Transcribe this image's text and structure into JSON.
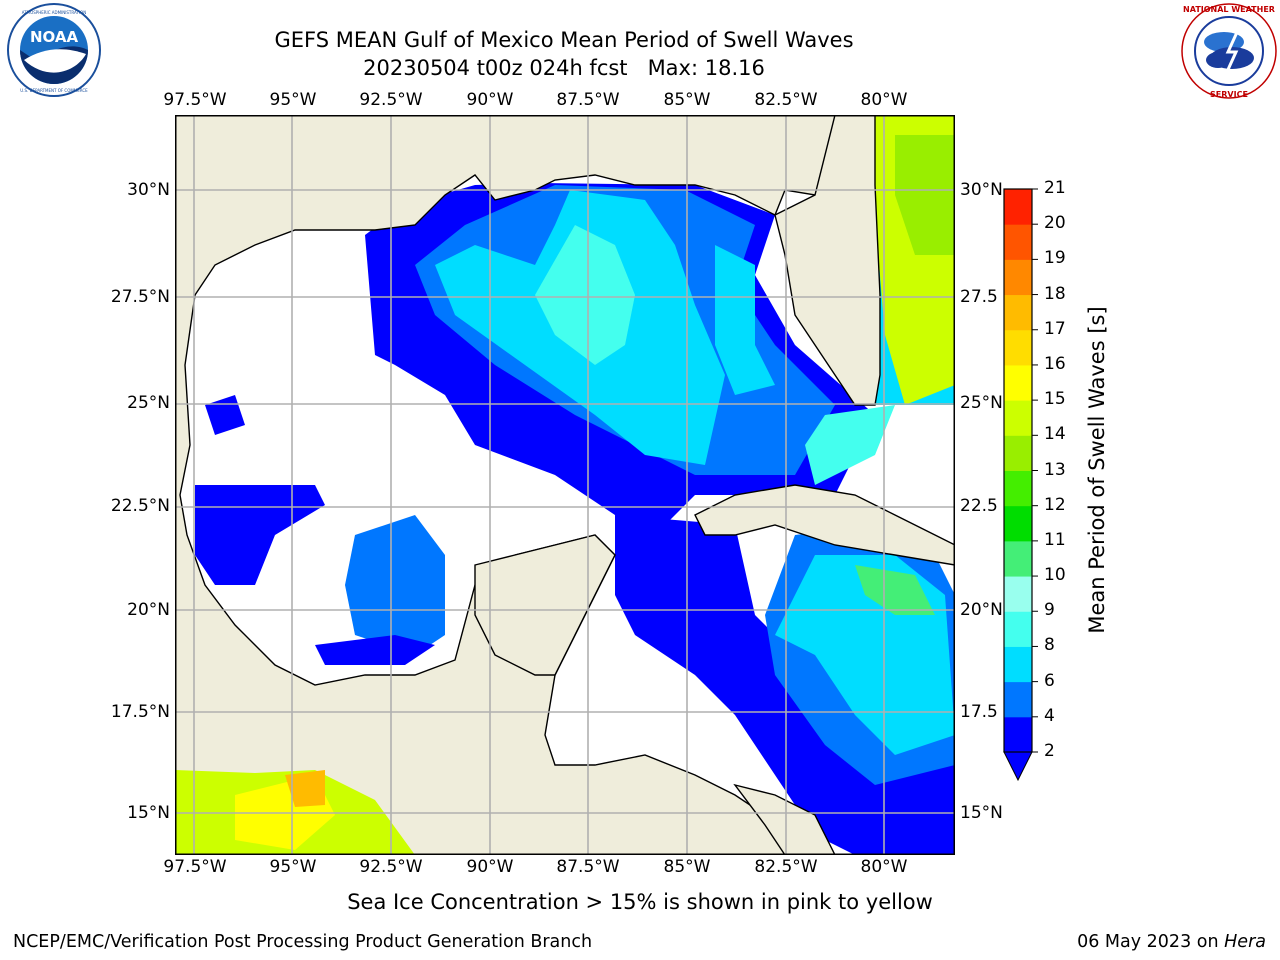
{
  "header": {
    "title_line1": "GEFS MEAN Gulf of Mexico Mean Period of Swell Waves",
    "title_line2": "20230504 t00z 024h fcst   Max: 18.16"
  },
  "logos": {
    "left": "NOAA",
    "left_ring_text": "NATIONAL OCEANIC AND ATMOSPHERIC ADMINISTRATION · U.S. DEPARTMENT OF COMMERCE",
    "right_ring_text": "NATIONAL WEATHER SERVICE"
  },
  "map": {
    "lon_labels": [
      "97.5°W",
      "95°W",
      "92.5°W",
      "90°W",
      "87.5°W",
      "85°W",
      "82.5°W",
      "80°W"
    ],
    "lat_labels_left": [
      "30°N",
      "27.5°N",
      "25°N",
      "22.5°N",
      "20°N",
      "17.5°N",
      "15°N"
    ],
    "lat_labels_right": [
      "30°N",
      "27.5",
      "25°N",
      "22.5",
      "20°N",
      "17.5",
      "15°N"
    ],
    "colors": {
      "land": "#efeddb",
      "grid": "#b0b0b0",
      "ocean_nodata": "#ffffff"
    }
  },
  "colorbar": {
    "label": "Mean Period of Swell Waves [s]",
    "ticks": [
      "2",
      "4",
      "6",
      "8",
      "9",
      "10",
      "11",
      "12",
      "13",
      "14",
      "15",
      "16",
      "17",
      "18",
      "19",
      "20",
      "21"
    ],
    "colors": [
      "#0000ff",
      "#0077ff",
      "#00ddff",
      "#44ffee",
      "#99ffee",
      "#44ee77",
      "#00dd00",
      "#44ee00",
      "#99ee00",
      "#ccff00",
      "#ffff00",
      "#ffdd00",
      "#ffbb00",
      "#ff8800",
      "#ff5500",
      "#ff2200"
    ],
    "under_color": "#0000ff"
  },
  "note": "Sea Ice Concentration > 15% is shown in pink to yellow",
  "footer": {
    "left": "NCEP/EMC/Verification Post Processing Product Generation Branch",
    "right_date": "06 May 2023 on ",
    "right_host": "Hera"
  }
}
